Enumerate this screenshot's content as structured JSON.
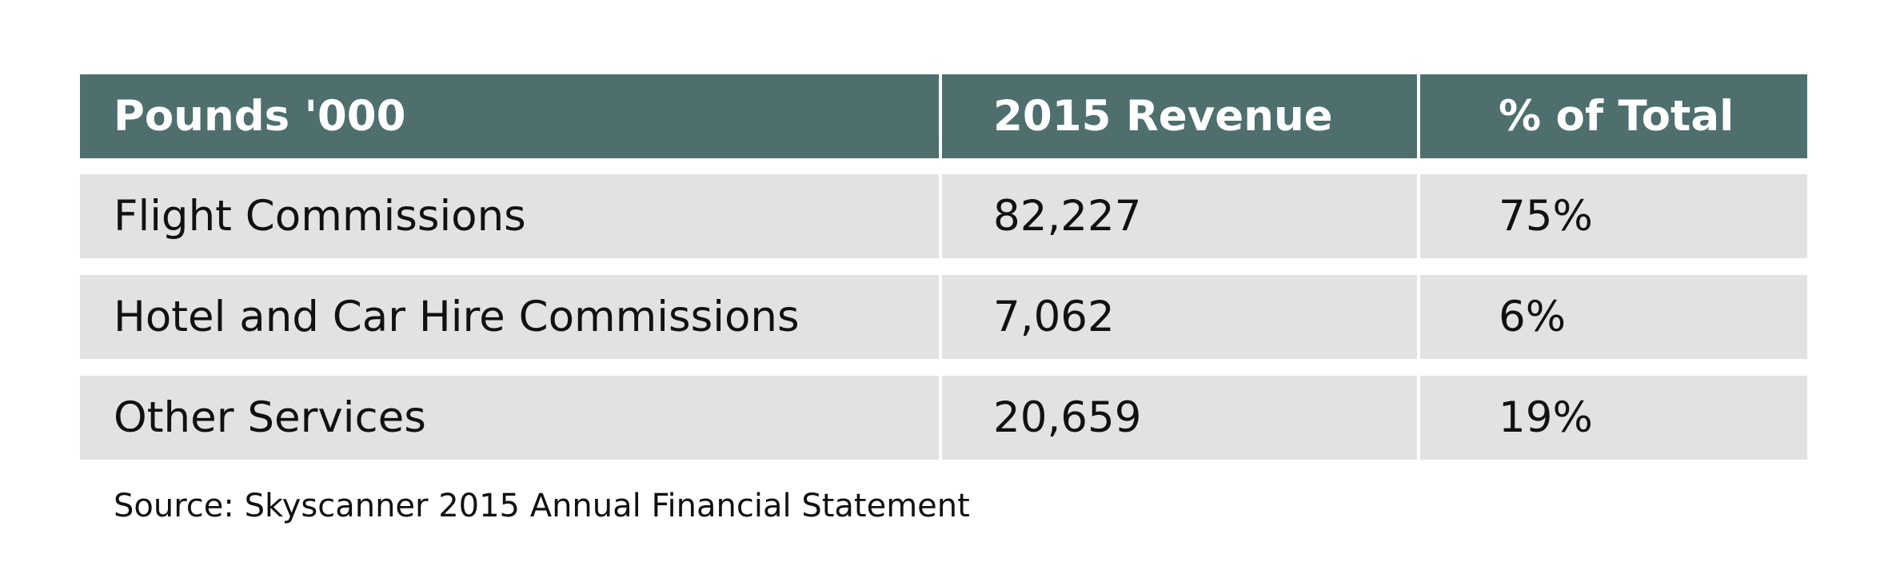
{
  "chart_data": {
    "type": "table",
    "columns": [
      "Pounds '000",
      "2015 Revenue",
      "% of Total"
    ],
    "rows": [
      {
        "label": "Flight Commissions",
        "revenue": "82,227",
        "share": "75%"
      },
      {
        "label": "Hotel and Car Hire Commissions",
        "revenue": "7,062",
        "share": "6%"
      },
      {
        "label": "Other Services",
        "revenue": "20,659",
        "share": "19%"
      }
    ],
    "source": "Source: Skyscanner 2015 Annual Financial Statement"
  },
  "colors": {
    "header_background": "#4f6f6f",
    "row_background": "#e2e2e3",
    "header_text": "#ffffff",
    "body_text": "#111111"
  }
}
